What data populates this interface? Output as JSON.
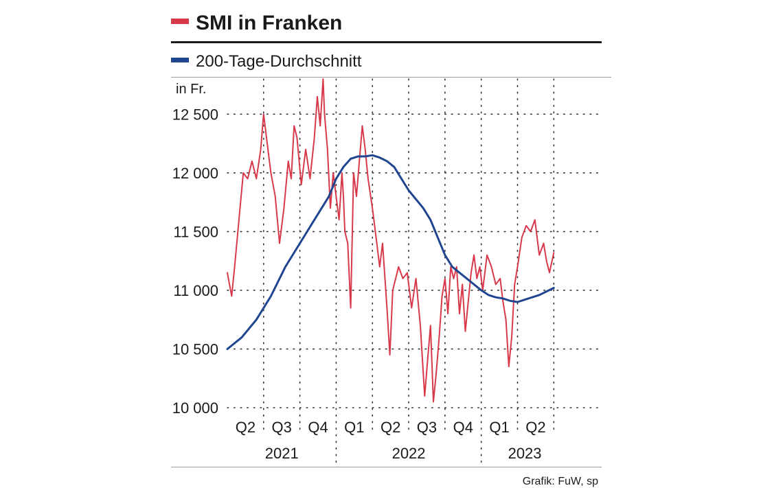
{
  "chart_data": {
    "type": "line",
    "title": "SMI in Franken",
    "ylabel": "in Fr.",
    "source": "Grafik: FuW, sp",
    "ylim": [
      10000,
      12800
    ],
    "yticks": [
      {
        "value": 10000,
        "label": "10 000"
      },
      {
        "value": 10500,
        "label": "10 500"
      },
      {
        "value": 11000,
        "label": "11 000"
      },
      {
        "value": 11500,
        "label": "11 500"
      },
      {
        "value": 12000,
        "label": "12 000"
      },
      {
        "value": 12500,
        "label": "12 500"
      }
    ],
    "xlim": [
      2021.25,
      2023.65
    ],
    "quarters": [
      {
        "label": "Q2",
        "center": 2021.375
      },
      {
        "label": "Q3",
        "center": 2021.625
      },
      {
        "label": "Q4",
        "center": 2021.875
      },
      {
        "label": "Q1",
        "center": 2022.125
      },
      {
        "label": "Q2",
        "center": 2022.375
      },
      {
        "label": "Q3",
        "center": 2022.625
      },
      {
        "label": "Q4",
        "center": 2022.875
      },
      {
        "label": "Q1",
        "center": 2023.125
      },
      {
        "label": "Q2",
        "center": 2023.375
      }
    ],
    "years": [
      {
        "label": "2021",
        "center": 2021.625
      },
      {
        "label": "2022",
        "center": 2022.5
      },
      {
        "label": "2023",
        "center": 2023.3
      }
    ],
    "quarter_dividers": [
      2021.5,
      2021.75,
      2022.25,
      2022.5,
      2022.75,
      2023.25,
      2023.5
    ],
    "year_dividers": [
      2022.0,
      2023.0
    ],
    "series": [
      {
        "name": "SMI in Franken",
        "color": "#d8394a",
        "x": [
          2021.25,
          2021.28,
          2021.3,
          2021.33,
          2021.36,
          2021.39,
          2021.42,
          2021.45,
          2021.48,
          2021.5,
          2021.52,
          2021.55,
          2021.58,
          2021.61,
          2021.64,
          2021.67,
          2021.69,
          2021.71,
          2021.73,
          2021.76,
          2021.79,
          2021.82,
          2021.85,
          2021.87,
          2021.89,
          2021.91,
          2021.92,
          2021.94,
          2021.96,
          2021.98,
          2022.0,
          2022.02,
          2022.04,
          2022.05,
          2022.06,
          2022.08,
          2022.1,
          2022.12,
          2022.14,
          2022.16,
          2022.18,
          2022.2,
          2022.22,
          2022.25,
          2022.27,
          2022.3,
          2022.32,
          2022.35,
          2022.37,
          2022.39,
          2022.41,
          2022.43,
          2022.46,
          2022.49,
          2022.52,
          2022.55,
          2022.58,
          2022.61,
          2022.63,
          2022.65,
          2022.67,
          2022.69,
          2022.71,
          2022.73,
          2022.75,
          2022.77,
          2022.79,
          2022.81,
          2022.83,
          2022.85,
          2022.87,
          2022.89,
          2022.91,
          2022.93,
          2022.95,
          2022.97,
          2022.99,
          2023.01,
          2023.04,
          2023.07,
          2023.1,
          2023.13,
          2023.15,
          2023.17,
          2023.19,
          2023.21,
          2023.23,
          2023.25,
          2023.28,
          2023.31,
          2023.34,
          2023.37,
          2023.4,
          2023.43,
          2023.45,
          2023.47,
          2023.5
        ],
        "values": [
          11150,
          10950,
          11200,
          11600,
          12000,
          11950,
          12100,
          11950,
          12200,
          12500,
          12300,
          12000,
          11800,
          11400,
          11700,
          12100,
          11950,
          12400,
          12300,
          11900,
          12200,
          11950,
          12300,
          12650,
          12400,
          12800,
          12500,
          12200,
          11700,
          12000,
          11800,
          11600,
          12000,
          11800,
          11500,
          11400,
          10850,
          12000,
          11800,
          12100,
          12400,
          12200,
          11950,
          11700,
          11500,
          11200,
          11400,
          10850,
          10450,
          11000,
          11100,
          11200,
          11100,
          11150,
          10850,
          11100,
          10700,
          10100,
          10400,
          10700,
          10050,
          10300,
          10600,
          10950,
          11100,
          10800,
          11200,
          11100,
          11200,
          10800,
          11050,
          10650,
          10900,
          11150,
          11300,
          11100,
          11200,
          11000,
          11300,
          11200,
          11050,
          11100,
          10900,
          10750,
          10350,
          10600,
          11050,
          11200,
          11450,
          11550,
          11500,
          11600,
          11300,
          11400,
          11250,
          11150,
          11320
        ]
      },
      {
        "name": "200-Tage-Durchschnitt",
        "color": "#1f4590",
        "x": [
          2021.25,
          2021.35,
          2021.45,
          2021.55,
          2021.65,
          2021.75,
          2021.85,
          2021.95,
          2022.0,
          2022.05,
          2022.1,
          2022.15,
          2022.2,
          2022.25,
          2022.3,
          2022.35,
          2022.4,
          2022.5,
          2022.6,
          2022.65,
          2022.7,
          2022.75,
          2022.8,
          2022.85,
          2022.9,
          2022.95,
          2023.0,
          2023.05,
          2023.1,
          2023.15,
          2023.2,
          2023.25,
          2023.3,
          2023.4,
          2023.5
        ],
        "values": [
          10500,
          10600,
          10750,
          10950,
          11200,
          11400,
          11600,
          11800,
          11950,
          12050,
          12120,
          12140,
          12140,
          12150,
          12130,
          12100,
          12050,
          11850,
          11700,
          11600,
          11450,
          11300,
          11200,
          11150,
          11100,
          11050,
          11000,
          10960,
          10940,
          10930,
          10910,
          10900,
          10920,
          10960,
          11020
        ]
      }
    ]
  }
}
